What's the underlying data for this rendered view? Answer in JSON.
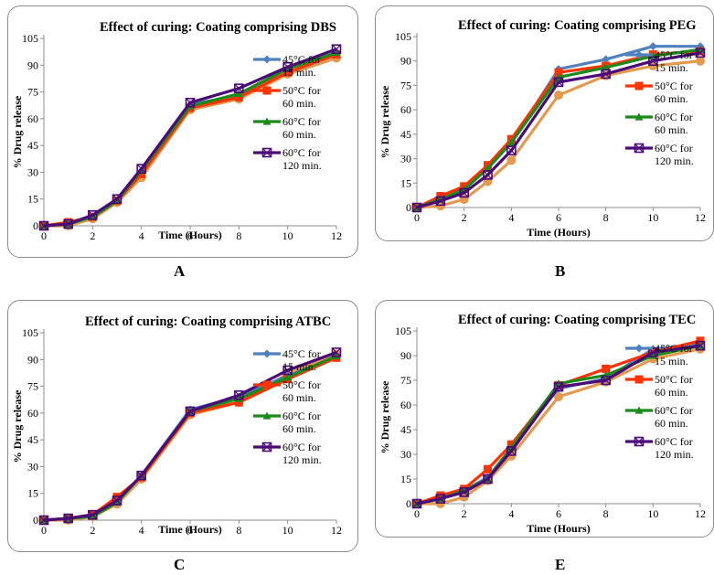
{
  "legend_labels": [
    "45°C for",
    "15 min.",
    "50°C for",
    "60 min.",
    "60°C for",
    "60 min.",
    "60°C for",
    "120 min."
  ],
  "chart_data": [
    {
      "type": "line",
      "letter": "A",
      "title": "Effect of curing: Coating comprising DBS",
      "xlabel": "Time (Hours)",
      "ylabel": "% Drug release",
      "xlim": [
        0,
        12
      ],
      "ylim": [
        0,
        105
      ],
      "xticks": [
        0,
        2,
        4,
        6,
        8,
        10,
        12
      ],
      "yticks": [
        0,
        15,
        30,
        45,
        60,
        75,
        90,
        105
      ],
      "x": [
        0,
        1,
        2,
        3,
        4,
        6,
        8,
        10,
        12
      ],
      "series": [
        {
          "name": "45°C for 15 min.",
          "color": "#4f81bd",
          "marker": "diamond",
          "values": [
            0,
            1,
            5,
            14,
            30,
            68,
            73,
            86,
            96
          ]
        },
        {
          "name": "50°C for 60 min.",
          "color": "#ff3300",
          "marker": "square",
          "values": [
            0,
            2,
            5,
            14,
            29,
            66,
            72,
            86,
            96
          ]
        },
        {
          "name": "60°C for 60 min.",
          "color": "#1a8a1a",
          "marker": "triangle",
          "values": [
            0,
            1,
            5,
            14,
            31,
            67,
            74,
            88,
            97
          ]
        },
        {
          "name": "60°C for 120 min.",
          "color": "#4b0a78",
          "marker": "square-x",
          "values": [
            0,
            1,
            6,
            15,
            32,
            69,
            77,
            89,
            99
          ]
        },
        {
          "name": "",
          "color": "#e39a4f",
          "marker": "circle",
          "values": [
            0,
            0,
            4,
            13,
            27,
            65,
            71,
            85,
            94
          ]
        }
      ]
    },
    {
      "type": "line",
      "letter": "B",
      "title": "Effect of curing: Coating comprising PEG",
      "xlabel": "Time (Hours)",
      "ylabel": "% Drug release",
      "xlim": [
        0,
        12
      ],
      "ylim": [
        0,
        105
      ],
      "xticks": [
        0,
        2,
        4,
        6,
        8,
        10,
        12
      ],
      "yticks": [
        0,
        15,
        30,
        45,
        60,
        75,
        90,
        105
      ],
      "x": [
        0,
        1,
        2,
        3,
        4,
        6,
        8,
        10,
        12
      ],
      "series": [
        {
          "name": "45°C for 15 min.",
          "color": "#4f81bd",
          "marker": "diamond",
          "values": [
            0,
            6,
            12,
            24,
            40,
            85,
            91,
            99,
            99
          ]
        },
        {
          "name": "50°C for 60 min.",
          "color": "#ff3300",
          "marker": "square",
          "values": [
            0,
            7,
            13,
            26,
            42,
            83,
            87,
            94,
            96
          ]
        },
        {
          "name": "60°C for 60 min.",
          "color": "#1a8a1a",
          "marker": "triangle",
          "values": [
            0,
            5,
            11,
            24,
            40,
            80,
            86,
            93,
            97
          ]
        },
        {
          "name": "60°C for 120 min.",
          "color": "#4b0a78",
          "marker": "square-x",
          "values": [
            0,
            4,
            9,
            20,
            35,
            77,
            82,
            90,
            95
          ]
        },
        {
          "name": "",
          "color": "#e39a4f",
          "marker": "circle",
          "values": [
            0,
            1,
            5,
            16,
            29,
            69,
            81,
            87,
            90
          ]
        }
      ]
    },
    {
      "type": "line",
      "letter": "C",
      "title": "Effect of curing: Coating comprising ATBC",
      "xlabel": "Time (Hours)",
      "ylabel": "% Drug release",
      "xlim": [
        0,
        12
      ],
      "ylim": [
        0,
        105
      ],
      "xticks": [
        0,
        2,
        4,
        6,
        8,
        10,
        12
      ],
      "yticks": [
        0,
        15,
        30,
        45,
        60,
        75,
        90,
        105
      ],
      "x": [
        0,
        1,
        2,
        3,
        4,
        6,
        8,
        10,
        12
      ],
      "series": [
        {
          "name": "45°C for 15 min.",
          "color": "#4f81bd",
          "marker": "diamond",
          "values": [
            0,
            1,
            3,
            10,
            25,
            62,
            69,
            81,
            91
          ]
        },
        {
          "name": "50°C for 60 min.",
          "color": "#ff3300",
          "marker": "square",
          "values": [
            0,
            1,
            3,
            13,
            24,
            60,
            66,
            79,
            91
          ]
        },
        {
          "name": "60°C for 60 min.",
          "color": "#1a8a1a",
          "marker": "triangle",
          "values": [
            0,
            1,
            2,
            10,
            25,
            61,
            68,
            80,
            92
          ]
        },
        {
          "name": "60°C for 120 min.",
          "color": "#4b0a78",
          "marker": "square-x",
          "values": [
            0,
            1,
            3,
            11,
            25,
            61,
            70,
            84,
            94
          ]
        },
        {
          "name": "",
          "color": "#e39a4f",
          "marker": "circle",
          "values": [
            0,
            0,
            2,
            9,
            23,
            59,
            66,
            82,
            93
          ]
        }
      ]
    },
    {
      "type": "line",
      "letter": "E",
      "title": "Effect of curing: Coating comprising TEC",
      "xlabel": "Time (Hours)",
      "ylabel": "% Drug release",
      "xlim": [
        0,
        12
      ],
      "ylim": [
        0,
        105
      ],
      "xticks": [
        0,
        2,
        4,
        6,
        8,
        10,
        12
      ],
      "yticks": [
        0,
        15,
        30,
        45,
        60,
        75,
        90,
        105
      ],
      "x": [
        0,
        1,
        2,
        3,
        4,
        6,
        8,
        10,
        12
      ],
      "series": [
        {
          "name": "45°C for 15 min.",
          "color": "#4f81bd",
          "marker": "diamond",
          "values": [
            0,
            4,
            8,
            16,
            34,
            70,
            76,
            94,
            97
          ]
        },
        {
          "name": "50°C for 60 min.",
          "color": "#ff3300",
          "marker": "square",
          "values": [
            0,
            5,
            9,
            21,
            36,
            72,
            82,
            92,
            99
          ]
        },
        {
          "name": "60°C for 60 min.",
          "color": "#1a8a1a",
          "marker": "triangle",
          "values": [
            0,
            3,
            8,
            15,
            34,
            73,
            78,
            90,
            96
          ]
        },
        {
          "name": "60°C for 120 min.",
          "color": "#4b0a78",
          "marker": "square-x",
          "values": [
            0,
            3,
            7,
            15,
            32,
            71,
            75,
            92,
            96
          ]
        },
        {
          "name": "",
          "color": "#e39a4f",
          "marker": "circle",
          "values": [
            0,
            0,
            4,
            14,
            29,
            65,
            74,
            88,
            94
          ]
        }
      ]
    }
  ]
}
